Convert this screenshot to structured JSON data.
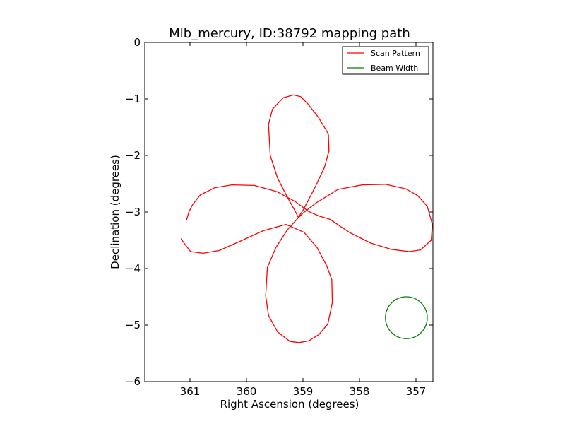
{
  "chart_data": {
    "type": "line",
    "title": "Mlb_mercury, ID:38792 mapping path",
    "xlabel": "Right Ascension (degrees)",
    "ylabel": "Declination (degrees)",
    "xlim": [
      361.8,
      356.7
    ],
    "ylim": [
      -6,
      0
    ],
    "x_ticks": [
      361,
      360,
      359,
      358,
      357
    ],
    "x_tick_labels": [
      "361",
      "360",
      "359",
      "358",
      "357"
    ],
    "y_ticks": [
      0,
      -1,
      -2,
      -3,
      -4,
      -5,
      -6
    ],
    "y_tick_labels": [
      "0",
      "−1",
      "−2",
      "−3",
      "−4",
      "−5",
      "−6"
    ],
    "grid": false,
    "legend_position": "top-right",
    "series": [
      {
        "name": "Scan Pattern",
        "color": "#ff0000",
        "x": [
          361.06,
          361.02,
          360.96,
          360.82,
          360.56,
          360.26,
          359.86,
          359.46,
          359.13,
          358.9,
          358.72,
          358.52,
          358.18,
          357.8,
          357.44,
          357.12,
          356.92,
          356.73,
          356.71,
          356.8,
          356.97,
          357.18,
          357.54,
          357.95,
          358.38,
          358.77,
          359.0,
          359.08,
          359.14,
          359.28,
          359.45,
          359.58,
          359.61,
          359.54,
          359.35,
          359.17,
          359.04,
          358.92,
          358.73,
          358.55,
          358.54,
          358.62,
          358.78,
          358.92,
          359.0,
          359.1,
          359.28,
          359.48,
          359.63,
          359.66,
          359.61,
          359.45,
          359.23,
          359.07,
          358.9,
          358.72,
          358.56,
          358.48,
          358.49,
          358.58,
          358.75,
          358.98,
          359.3,
          359.7,
          360.12,
          360.48,
          360.77,
          360.99,
          361.09,
          361.16
        ],
        "y": [
          -3.14,
          -3.0,
          -2.88,
          -2.7,
          -2.57,
          -2.52,
          -2.53,
          -2.64,
          -2.82,
          -2.99,
          -3.07,
          -3.13,
          -3.36,
          -3.55,
          -3.66,
          -3.7,
          -3.67,
          -3.5,
          -3.22,
          -2.9,
          -2.71,
          -2.59,
          -2.51,
          -2.52,
          -2.6,
          -2.84,
          -3.02,
          -3.1,
          -2.98,
          -2.73,
          -2.4,
          -2.0,
          -1.45,
          -1.18,
          -0.98,
          -0.93,
          -0.96,
          -1.08,
          -1.32,
          -1.62,
          -1.92,
          -2.21,
          -2.55,
          -2.82,
          -2.97,
          -3.12,
          -3.32,
          -3.63,
          -3.98,
          -4.48,
          -4.83,
          -5.12,
          -5.29,
          -5.31,
          -5.28,
          -5.17,
          -4.98,
          -4.6,
          -4.2,
          -3.95,
          -3.63,
          -3.36,
          -3.22,
          -3.33,
          -3.52,
          -3.68,
          -3.73,
          -3.7,
          -3.57,
          -3.47
        ]
      },
      {
        "name": "Beam Width",
        "color": "#008000",
        "shape": "circle",
        "center": [
          357.17,
          -4.87
        ],
        "radius": 0.37
      }
    ]
  }
}
